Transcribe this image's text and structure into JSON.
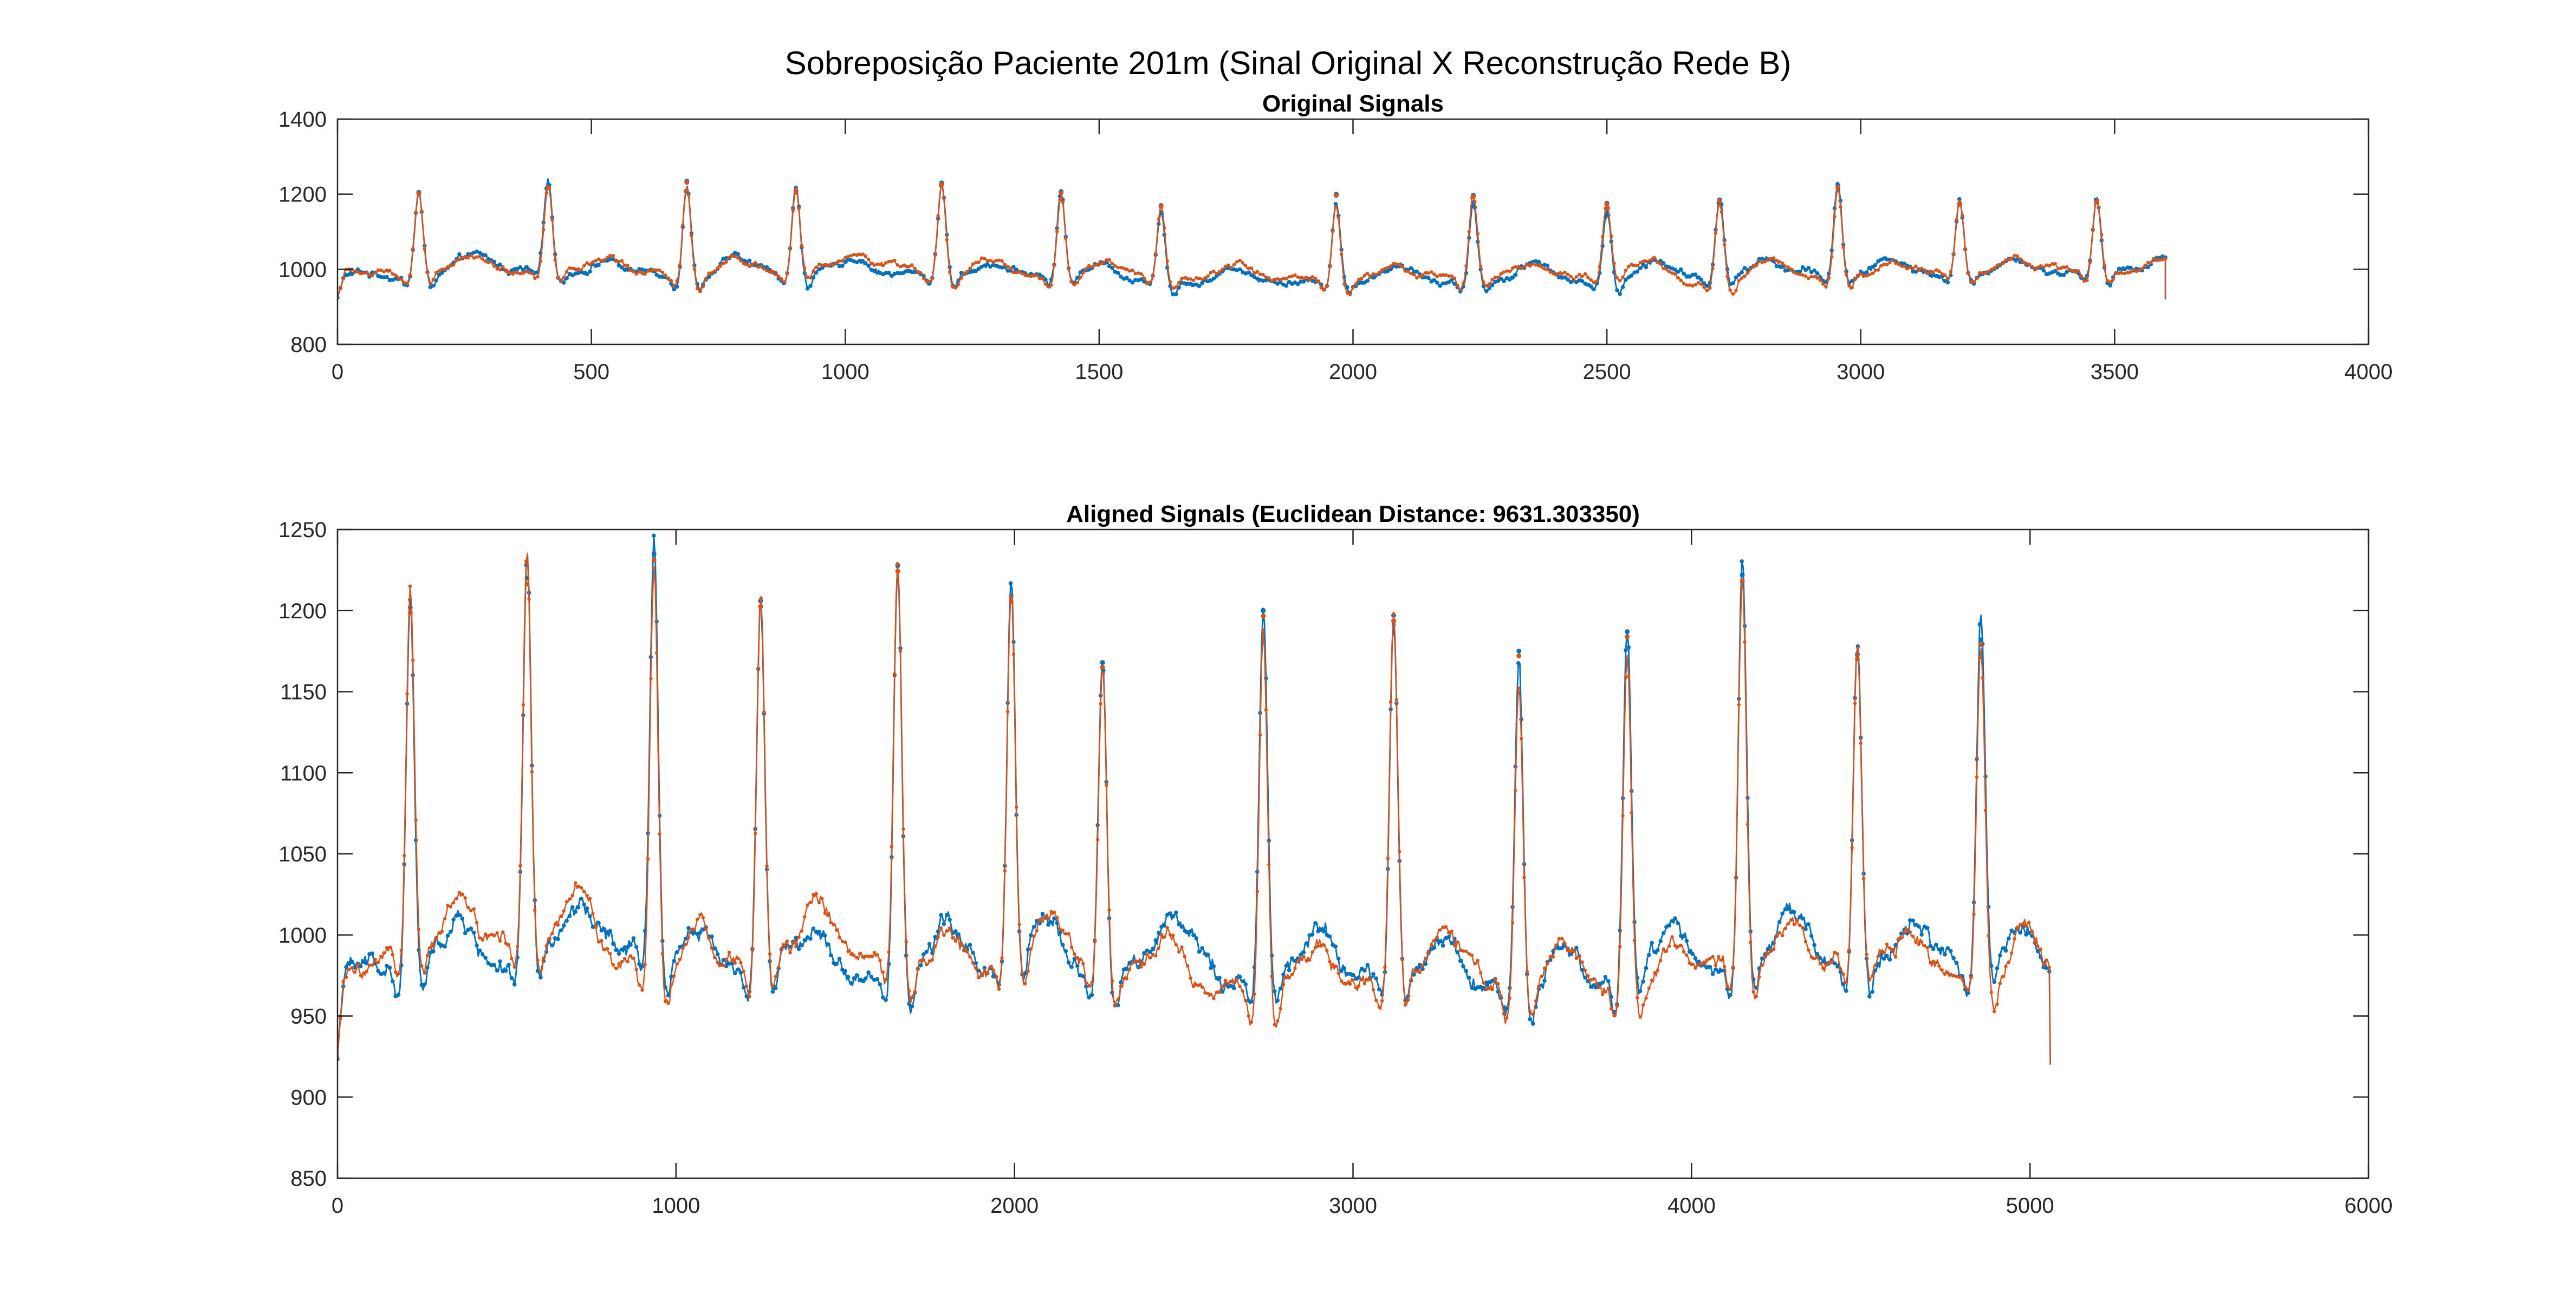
{
  "figure": {
    "suptitle": "Sobreposição Paciente 201m (Sinal Original X Reconstrução Rede B)"
  },
  "colors": {
    "original": "#0072BD",
    "reconstruction": "#D95319",
    "axis": "#262626",
    "background": "#ffffff"
  },
  "chart_data": [
    {
      "type": "line",
      "title": "Original Signals",
      "xlabel": "",
      "ylabel": "",
      "xlim": [
        0,
        4000
      ],
      "ylim": [
        800,
        1400
      ],
      "xticks": [
        0,
        500,
        1000,
        1500,
        2000,
        2500,
        3000,
        3500,
        4000
      ],
      "yticks": [
        800,
        1000,
        1200,
        1400
      ],
      "grid": false,
      "legend": "none",
      "baseline": 985,
      "signal_end": 3600,
      "end_value": 920,
      "peaks": [
        {
          "x": 160,
          "y": 1205
        },
        {
          "x": 415,
          "y": 1220
        },
        {
          "x": 688,
          "y": 1235
        },
        {
          "x": 903,
          "y": 1208
        },
        {
          "x": 1190,
          "y": 1230
        },
        {
          "x": 1425,
          "y": 1207
        },
        {
          "x": 1622,
          "y": 1170
        },
        {
          "x": 1967,
          "y": 1200
        },
        {
          "x": 2237,
          "y": 1197
        },
        {
          "x": 2500,
          "y": 1176
        },
        {
          "x": 2722,
          "y": 1185
        },
        {
          "x": 2955,
          "y": 1222
        },
        {
          "x": 3195,
          "y": 1175
        },
        {
          "x": 3465,
          "y": 1182
        }
      ],
      "series": [
        {
          "color": "#0072BD",
          "marker": "dot"
        },
        {
          "color": "#D95319",
          "marker": "dot"
        }
      ]
    },
    {
      "type": "line",
      "title": "Aligned Signals (Euclidean Distance: 9631.303350)",
      "xlabel": "",
      "ylabel": "",
      "xlim": [
        0,
        6000
      ],
      "ylim": [
        850,
        1250
      ],
      "xticks": [
        0,
        1000,
        2000,
        3000,
        4000,
        5000,
        6000
      ],
      "yticks": [
        850,
        900,
        950,
        1000,
        1050,
        1100,
        1150,
        1200,
        1250
      ],
      "grid": false,
      "legend": "none",
      "baseline": 978,
      "signal_end": 5060,
      "end_value": 920,
      "peaks": [
        {
          "x": 215,
          "y": 1202
        },
        {
          "x": 560,
          "y": 1220
        },
        {
          "x": 935,
          "y": 1235
        },
        {
          "x": 1250,
          "y": 1206
        },
        {
          "x": 1655,
          "y": 1228
        },
        {
          "x": 1990,
          "y": 1209
        },
        {
          "x": 2260,
          "y": 1168
        },
        {
          "x": 2735,
          "y": 1200
        },
        {
          "x": 3120,
          "y": 1197
        },
        {
          "x": 3490,
          "y": 1175
        },
        {
          "x": 3810,
          "y": 1187
        },
        {
          "x": 4150,
          "y": 1222
        },
        {
          "x": 4490,
          "y": 1173
        },
        {
          "x": 4855,
          "y": 1182
        }
      ],
      "series": [
        {
          "color": "#0072BD",
          "marker": "dot"
        },
        {
          "color": "#D95319",
          "marker": "dot"
        }
      ]
    }
  ]
}
